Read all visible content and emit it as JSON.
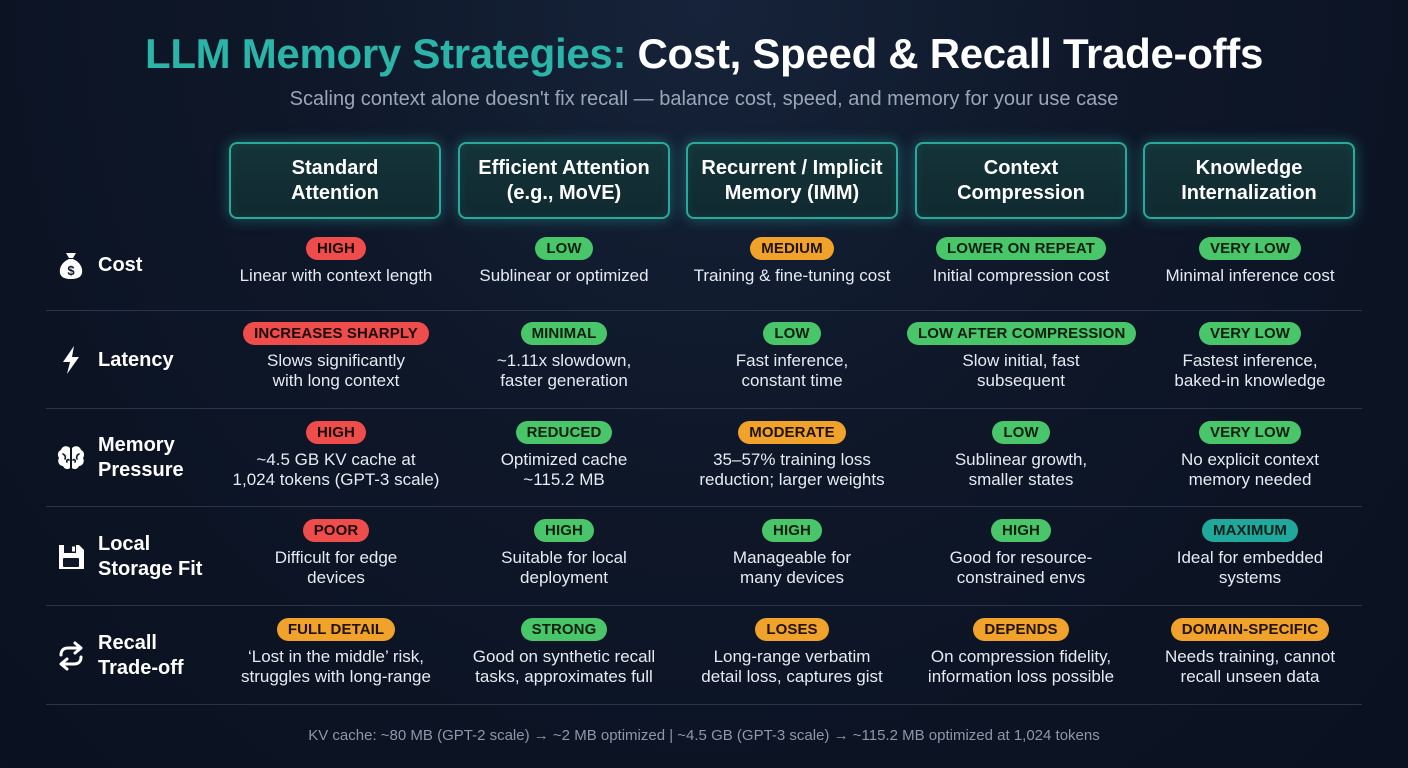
{
  "title": {
    "accent": "LLM Memory Strategies:",
    "rest": " Cost, Speed & Recall Trade-offs"
  },
  "subtitle": "Scaling context alone doesn't fix recall — balance cost, speed, and memory for your use case",
  "columns": [
    "Standard\nAttention",
    "Efficient Attention\n(e.g., MoVE)",
    "Recurrent / Implicit\nMemory (IMM)",
    "Context\nCompression",
    "Knowledge\nInternalization"
  ],
  "rows": [
    {
      "label": "Cost",
      "icon": "money-bag-icon",
      "cells": [
        {
          "badge": "HIGH",
          "color": "red",
          "desc": "Linear with context length"
        },
        {
          "badge": "LOW",
          "color": "green",
          "desc": "Sublinear or optimized"
        },
        {
          "badge": "MEDIUM",
          "color": "orange",
          "desc": "Training & fine-tuning cost"
        },
        {
          "badge": "LOWER ON REPEAT",
          "color": "green",
          "desc": "Initial compression cost"
        },
        {
          "badge": "VERY LOW",
          "color": "green",
          "desc": "Minimal inference cost"
        }
      ]
    },
    {
      "label": "Latency",
      "icon": "lightning-icon",
      "cells": [
        {
          "badge": "INCREASES SHARPLY",
          "color": "red",
          "desc": "Slows significantly\nwith long context"
        },
        {
          "badge": "MINIMAL",
          "color": "green",
          "desc": "~1.11x slowdown,\nfaster generation"
        },
        {
          "badge": "LOW",
          "color": "green",
          "desc": "Fast inference,\nconstant time"
        },
        {
          "badge": "LOW AFTER COMPRESSION",
          "color": "green",
          "desc": "Slow initial, fast\nsubsequent"
        },
        {
          "badge": "VERY LOW",
          "color": "green",
          "desc": "Fastest inference,\nbaked-in knowledge"
        }
      ]
    },
    {
      "label": "Memory\nPressure",
      "icon": "brain-icon",
      "cells": [
        {
          "badge": "HIGH",
          "color": "red",
          "desc": "~4.5 GB KV cache at\n1,024 tokens (GPT-3 scale)"
        },
        {
          "badge": "REDUCED",
          "color": "green",
          "desc": "Optimized cache\n~115.2 MB"
        },
        {
          "badge": "MODERATE",
          "color": "orange",
          "desc": "35–57% training loss\nreduction; larger weights"
        },
        {
          "badge": "LOW",
          "color": "green",
          "desc": "Sublinear growth,\nsmaller states"
        },
        {
          "badge": "VERY LOW",
          "color": "green",
          "desc": "No explicit context\nmemory needed"
        }
      ]
    },
    {
      "label": "Local\nStorage Fit",
      "icon": "floppy-disk-icon",
      "cells": [
        {
          "badge": "POOR",
          "color": "red",
          "desc": "Difficult for edge\ndevices"
        },
        {
          "badge": "HIGH",
          "color": "green",
          "desc": "Suitable for local\ndeployment"
        },
        {
          "badge": "HIGH",
          "color": "green",
          "desc": "Manageable for\nmany devices"
        },
        {
          "badge": "HIGH",
          "color": "green",
          "desc": "Good for resource-\nconstrained envs"
        },
        {
          "badge": "MAXIMUM",
          "color": "teal",
          "desc": "Ideal for embedded\nsystems"
        }
      ]
    },
    {
      "label": "Recall\nTrade-off",
      "icon": "repeat-arrows-icon",
      "cells": [
        {
          "badge": "FULL DETAIL",
          "color": "orange",
          "desc": "‘Lost in the middle’ risk,\nstruggles with long-range"
        },
        {
          "badge": "STRONG",
          "color": "green",
          "desc": "Good on synthetic recall\ntasks, approximates full"
        },
        {
          "badge": "LOSES",
          "color": "orange",
          "desc": "Long-range verbatim\ndetail loss, captures gist"
        },
        {
          "badge": "DEPENDS",
          "color": "orange",
          "desc": "On compression fidelity,\ninformation loss possible"
        },
        {
          "badge": "DOMAIN-SPECIFIC",
          "color": "orange",
          "desc": "Needs training, cannot\nrecall unseen data"
        }
      ]
    }
  ],
  "footnote": "KV cache: ~80 MB (GPT-2 scale) → ~2 MB optimized | ~4.5 GB (GPT-3 scale) → ~115.2 MB optimized at 1,024 tokens"
}
